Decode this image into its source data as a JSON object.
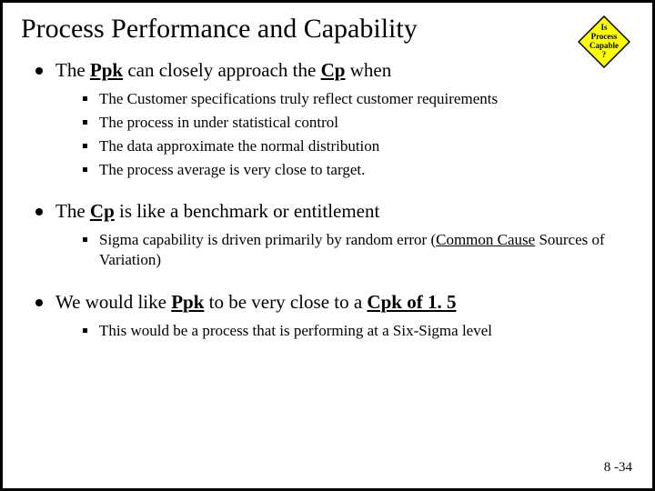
{
  "title": "Process Performance and Capability",
  "diamond": {
    "line1": "Is",
    "line2": "Process",
    "line3": "Capable",
    "line4": "?"
  },
  "colors": {
    "diamond_fill": "#ffff00",
    "diamond_stroke": "#000000",
    "border": "#000000",
    "text": "#000000"
  },
  "bullets": [
    {
      "parts": [
        {
          "t": "The "
        },
        {
          "t": "Ppk",
          "b": true,
          "u": true
        },
        {
          "t": " can closely approach the "
        },
        {
          "t": "Cp",
          "b": true,
          "u": true
        },
        {
          "t": "  when"
        }
      ],
      "sub": [
        [
          {
            "t": "The Customer specifications truly reflect customer requirements"
          }
        ],
        [
          {
            "t": "The process in under statistical control"
          }
        ],
        [
          {
            "t": "The data approximate the normal distribution"
          }
        ],
        [
          {
            "t": "The process average is very close to target."
          }
        ]
      ]
    },
    {
      "parts": [
        {
          "t": "The "
        },
        {
          "t": "Cp",
          "b": true,
          "u": true
        },
        {
          "t": " is like a benchmark or entitlement"
        }
      ],
      "sub": [
        [
          {
            "t": "Sigma capability is driven primarily by random error ("
          },
          {
            "t": "Common Cause",
            "u": true
          },
          {
            "t": " Sources of Variation)"
          }
        ]
      ]
    },
    {
      "parts": [
        {
          "t": "We would like "
        },
        {
          "t": "Ppk",
          "b": true,
          "u": true
        },
        {
          "t": " to be very close to a "
        },
        {
          "t": "Cpk of 1. 5",
          "b": true,
          "u": true
        }
      ],
      "sub": [
        [
          {
            "t": "This would be a process that is performing at a Six-Sigma level"
          }
        ]
      ]
    }
  ],
  "pagenum": "8 -34"
}
